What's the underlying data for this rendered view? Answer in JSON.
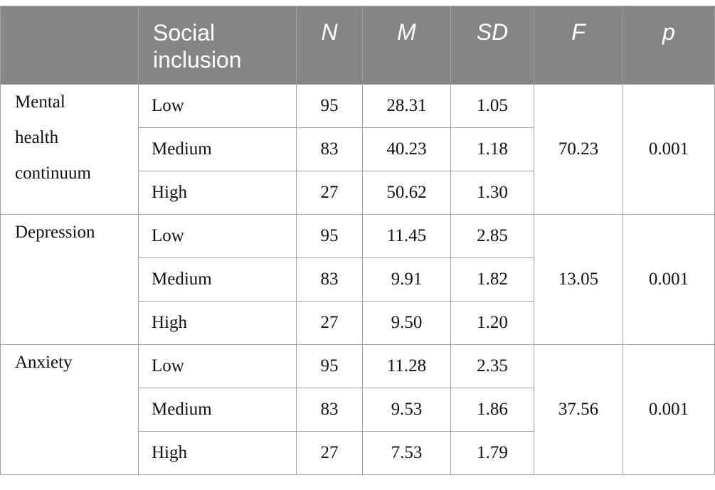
{
  "header": {
    "col_blank": "",
    "social_inclusion": "Social inclusion",
    "n": "N",
    "m": "M",
    "sd": "SD",
    "f": "F",
    "p": "p"
  },
  "groups": [
    {
      "label_lines": [
        "Mental",
        "health",
        "continuum"
      ],
      "F": "70.23",
      "p": "0.001",
      "rows": [
        {
          "level": "Low",
          "N": "95",
          "M": "28.31",
          "SD": "1.05"
        },
        {
          "level": "Medium",
          "N": "83",
          "M": "40.23",
          "SD": "1.18"
        },
        {
          "level": "High",
          "N": "27",
          "M": "50.62",
          "SD": "1.30"
        }
      ]
    },
    {
      "label_lines": [
        "Depression"
      ],
      "F": "13.05",
      "p": "0.001",
      "rows": [
        {
          "level": "Low",
          "N": "95",
          "M": "11.45",
          "SD": "2.85"
        },
        {
          "level": "Medium",
          "N": "83",
          "M": "9.91",
          "SD": "1.82"
        },
        {
          "level": "High",
          "N": "27",
          "M": "9.50",
          "SD": "1.20"
        }
      ]
    },
    {
      "label_lines": [
        "Anxiety"
      ],
      "F": "37.56",
      "p": "0.001",
      "rows": [
        {
          "level": "Low",
          "N": "95",
          "M": "11.28",
          "SD": "2.35"
        },
        {
          "level": "Medium",
          "N": "83",
          "M": "9.53",
          "SD": "1.86"
        },
        {
          "level": "High",
          "N": "27",
          "M": "7.53",
          "SD": "1.79"
        }
      ]
    }
  ]
}
